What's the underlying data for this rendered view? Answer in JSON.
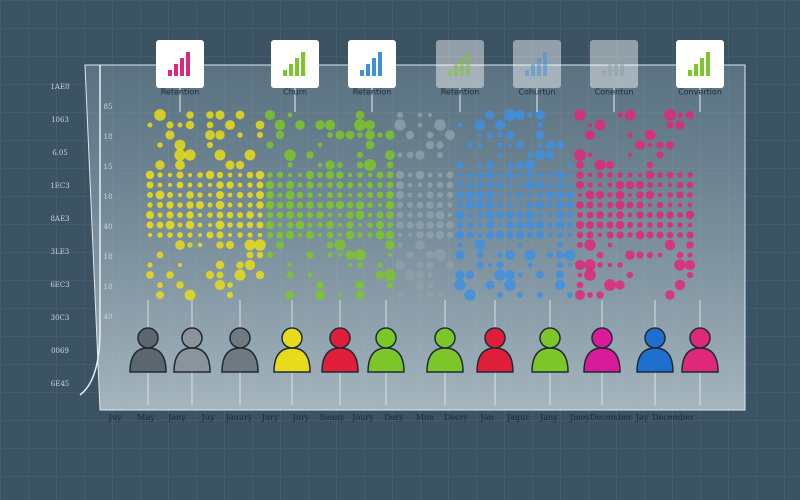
{
  "left_axis": [
    "1AE0",
    "1063",
    "6.05",
    "1EC3",
    "8AE3",
    "3LE3",
    "6EC3",
    "30C3",
    "0069",
    "6E45"
  ],
  "inner_axis": [
    "85",
    "18",
    "15",
    "18",
    "40",
    "18",
    "18",
    "40"
  ],
  "cards": [
    {
      "label": "Retention"
    },
    {
      "label": "Churn"
    },
    {
      "label": "Retention"
    },
    {
      "label": "Retention"
    },
    {
      "label": "Cohurtun"
    },
    {
      "label": "Conentun"
    },
    {
      "label": "Convertion"
    }
  ],
  "bottom_labels": [
    "Juy",
    "May",
    "Jany",
    "Juy",
    "Janury",
    "Jury",
    "Jury",
    "Seany",
    "Joury",
    "Dery",
    "Mon",
    "Decry",
    "Jan",
    "Jagur",
    "Jany",
    "Jmey",
    "December",
    "Jay",
    "December"
  ]
}
